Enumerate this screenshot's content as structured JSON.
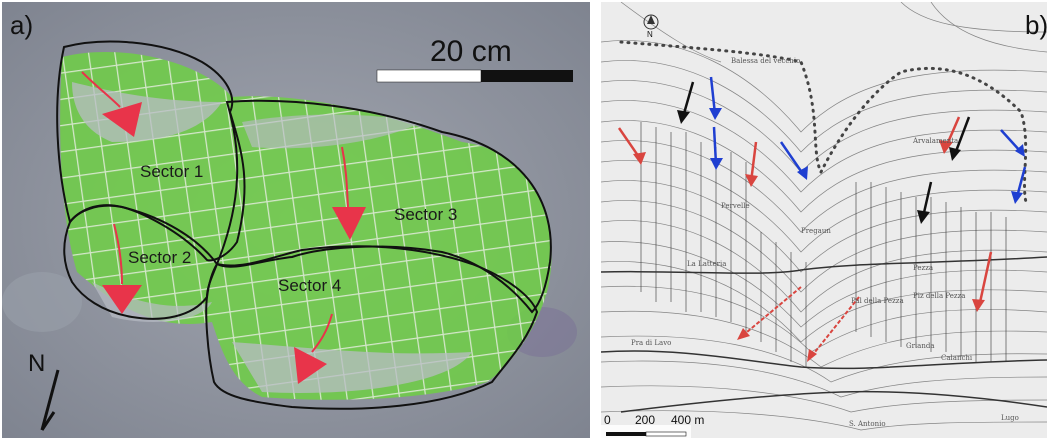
{
  "panel_a": {
    "label": "a)",
    "scale_label": "20 cm",
    "north_label": "N",
    "sectors": [
      {
        "name": "Sector 1"
      },
      {
        "name": "Sector 2"
      },
      {
        "name": "Sector 3"
      },
      {
        "name": "Sector 4"
      }
    ],
    "colors": {
      "background": "#8d929e",
      "grass": "#6fcf45",
      "sector_outline": "#111111",
      "arrow": "#e8344a",
      "grid": "#e6ecdf"
    }
  },
  "panel_b": {
    "label": "b)",
    "north_label": "N",
    "scale_ticks": [
      "0",
      "200",
      "400 m"
    ],
    "place_labels": [
      "Balessa del vecchio",
      "Arvalamenta",
      "Pervelle",
      "La Latteria",
      "Pra di Lavo",
      "Pregaun",
      "Pal della Pezza",
      "Pezza",
      "Piz della Pezza",
      "Grianda",
      "Calanchi",
      "S. Antonio",
      "Lugo"
    ],
    "arrow_colors": {
      "red": "#d9453f",
      "blue": "#1f3fd1",
      "black": "#111111"
    }
  }
}
